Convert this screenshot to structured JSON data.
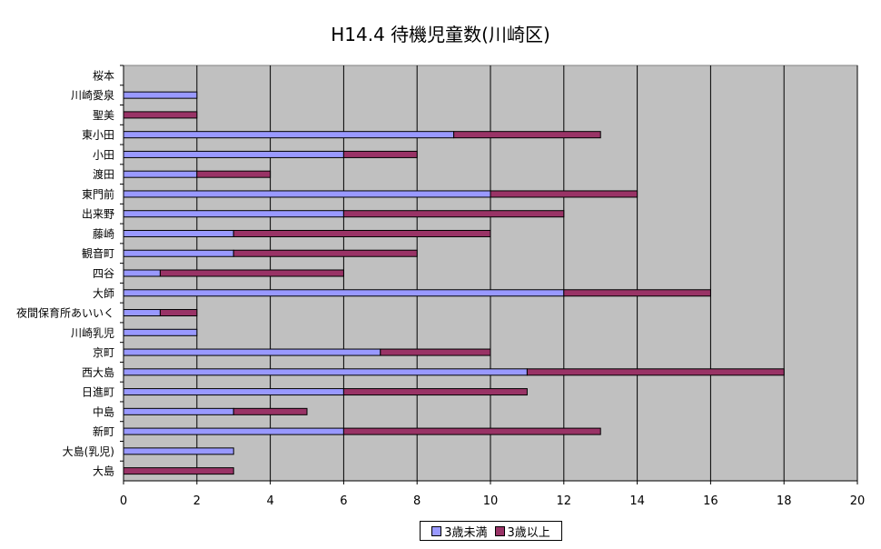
{
  "chart_data": {
    "type": "bar",
    "orientation": "horizontal",
    "stacked": true,
    "title": "H14.4 待機児童数(川崎区)",
    "xlim": [
      0,
      20
    ],
    "xticks": [
      0,
      2,
      4,
      6,
      8,
      10,
      12,
      14,
      16,
      18,
      20
    ],
    "grid": true,
    "legend_position": "bottom",
    "categories": [
      "桜本",
      "川崎愛泉",
      "聖美",
      "東小田",
      "小田",
      "渡田",
      "東門前",
      "出来野",
      "藤崎",
      "観音町",
      "四谷",
      "大師",
      "夜間保育所あいいく",
      "川崎乳児",
      "京町",
      "西大島",
      "日進町",
      "中島",
      "新町",
      "大島(乳児)",
      "大島"
    ],
    "series": [
      {
        "name": "3歳未満",
        "color": "#9999ff",
        "values": [
          0,
          2,
          0,
          9,
          6,
          2,
          10,
          6,
          3,
          3,
          1,
          12,
          1,
          2,
          7,
          11,
          6,
          3,
          6,
          3,
          0
        ]
      },
      {
        "name": "3歳以上",
        "color": "#993366",
        "values": [
          0,
          0,
          2,
          4,
          2,
          2,
          4,
          6,
          7,
          5,
          5,
          4,
          1,
          0,
          3,
          7,
          5,
          2,
          7,
          0,
          3
        ]
      }
    ],
    "plot_background": "#c0c0c0"
  }
}
